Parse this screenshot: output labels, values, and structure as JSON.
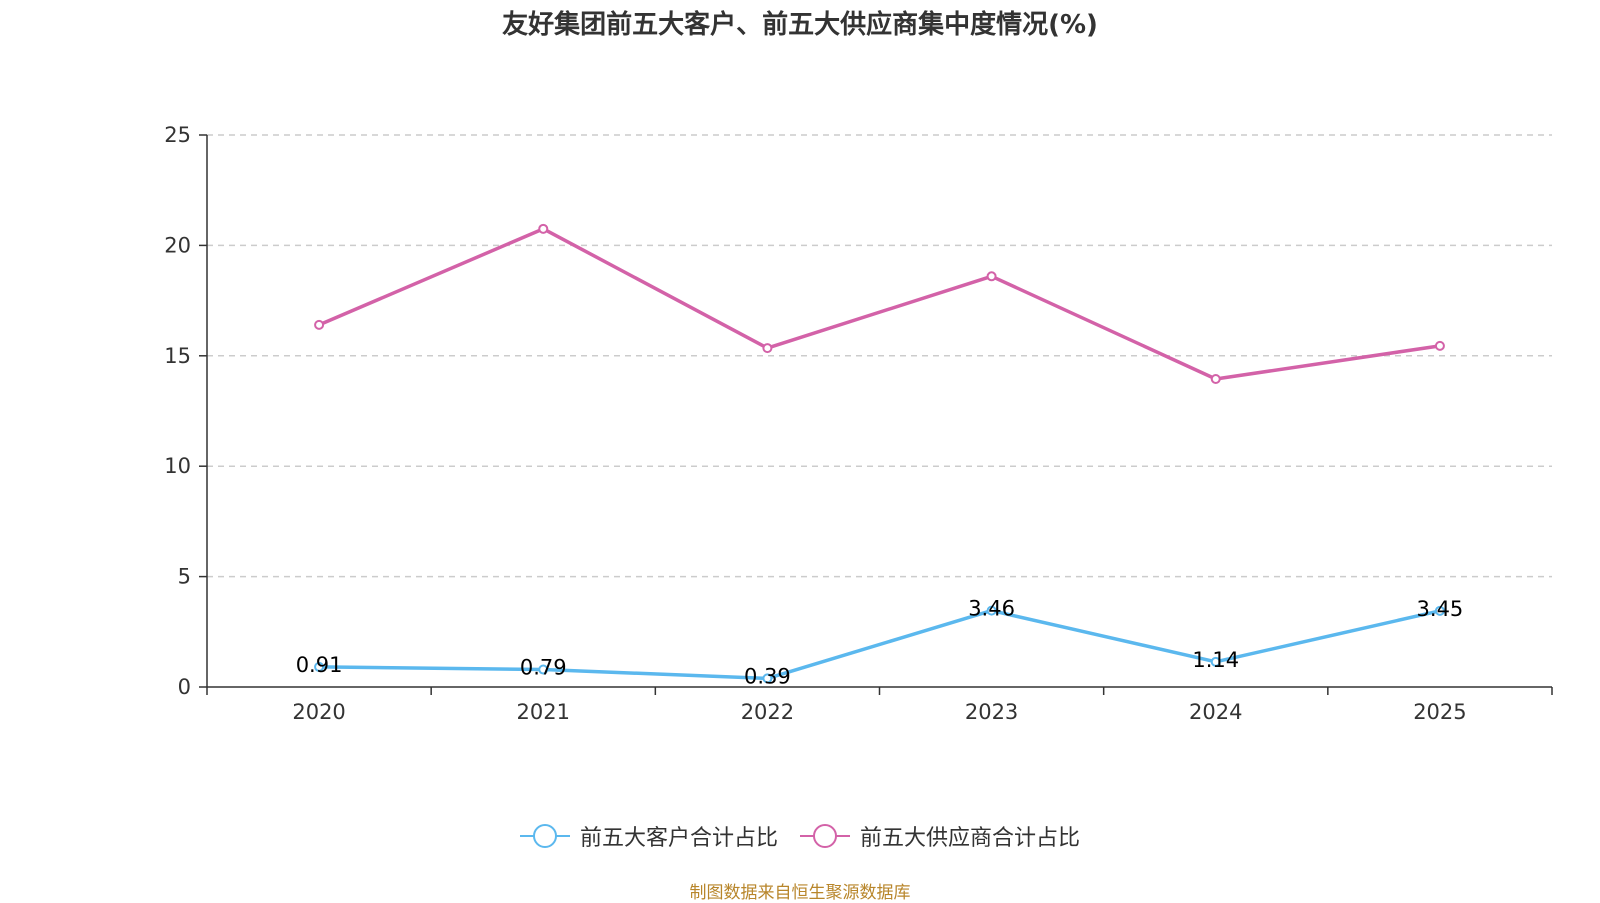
{
  "colors": {
    "series1": "#5bb8ee",
    "series2": "#d362a8",
    "axis": "#333333",
    "grid": "#cccccc",
    "source": "#b8862b"
  },
  "chart_data": {
    "type": "line",
    "title": "友好集团前五大客户、前五大供应商集中度情况(%)",
    "categories": [
      "2020",
      "2021",
      "2022",
      "2023",
      "2024",
      "2025"
    ],
    "ylim": [
      0,
      25
    ],
    "yticks": [
      "0",
      "5",
      "10",
      "15",
      "20",
      "25"
    ],
    "grid": true,
    "legend_position": "bottom",
    "series": [
      {
        "name": "前五大客户合计占比",
        "values": [
          0.91,
          0.79,
          0.39,
          3.46,
          1.14,
          3.45
        ],
        "labels": [
          "0.91",
          "0.79",
          "0.39",
          "3.46",
          "1.14",
          "3.45"
        ],
        "show_labels": true
      },
      {
        "name": "前五大供应商合计占比",
        "values": [
          16.4,
          20.75,
          15.35,
          18.6,
          13.95,
          15.45
        ],
        "show_labels": false
      }
    ],
    "source": "制图数据来自恒生聚源数据库"
  }
}
